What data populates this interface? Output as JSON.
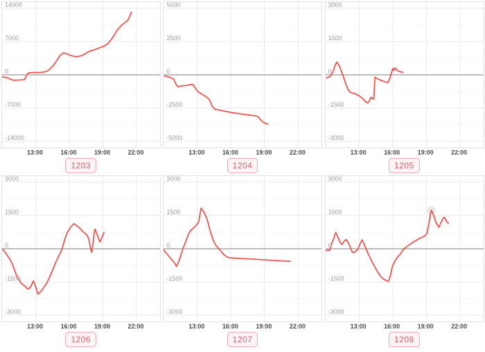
{
  "style": {
    "line_color": "#ef5350",
    "zero_line_color": "#a6a6a6",
    "grid_major_color": "#eaeaea",
    "grid_minor_color": "#f5f5f5",
    "panel_border_color": "#e2e2e2",
    "ytick_color": "#9b9b9b",
    "xtick_color": "#4a4a4a",
    "badge_text_color": "#e65a6b",
    "badge_border_color": "#f5a3b7",
    "badge_bg_color": "#fdf4f6",
    "highlight_color": "rgba(130,130,130,0.18)"
  },
  "axis": {
    "x_start_hour": 10,
    "x_end_hour": 24.1,
    "xticks_hours": [
      13,
      16,
      19,
      22
    ]
  },
  "chart_data": [
    {
      "id": "1203",
      "type": "line",
      "ymax": 14000,
      "ylim": [
        -14000,
        14000
      ],
      "yticks": [
        "14000",
        "7000",
        "0",
        "-7000",
        "-14000"
      ],
      "xticks": [
        "13:00",
        "16:00",
        "19:00",
        "22:00"
      ],
      "highlight": null,
      "points": [
        [
          10.0,
          -430
        ],
        [
          10.5,
          -650
        ],
        [
          11.0,
          -1150
        ],
        [
          11.6,
          -1080
        ],
        [
          12.0,
          -1010
        ],
        [
          12.15,
          -300
        ],
        [
          12.3,
          300
        ],
        [
          12.5,
          450
        ],
        [
          12.8,
          480
        ],
        [
          13.3,
          500
        ],
        [
          13.7,
          580
        ],
        [
          14.0,
          750
        ],
        [
          14.25,
          1200
        ],
        [
          14.55,
          1900
        ],
        [
          14.85,
          2900
        ],
        [
          15.15,
          4000
        ],
        [
          15.45,
          4600
        ],
        [
          15.75,
          4450
        ],
        [
          16.1,
          4100
        ],
        [
          16.4,
          3900
        ],
        [
          16.7,
          3820
        ],
        [
          17.0,
          3970
        ],
        [
          17.3,
          4260
        ],
        [
          17.6,
          4700
        ],
        [
          17.9,
          5050
        ],
        [
          18.2,
          5270
        ],
        [
          18.5,
          5500
        ],
        [
          18.8,
          5800
        ],
        [
          19.05,
          6000
        ],
        [
          19.25,
          6250
        ],
        [
          19.5,
          6700
        ],
        [
          19.8,
          7600
        ],
        [
          20.05,
          8500
        ],
        [
          20.3,
          9500
        ],
        [
          20.65,
          10400
        ],
        [
          20.95,
          11000
        ],
        [
          21.2,
          11400
        ],
        [
          21.35,
          12100
        ],
        [
          21.55,
          13200
        ]
      ]
    },
    {
      "id": "1204",
      "type": "line",
      "ymax": 5000,
      "ylim": [
        -5000,
        5000
      ],
      "yticks": [
        "5000",
        "2500",
        "0",
        "-2500",
        "-5000"
      ],
      "xticks": [
        "13:00",
        "16:00",
        "19:00",
        "22:00"
      ],
      "highlight": null,
      "points": [
        [
          10.1,
          -100
        ],
        [
          10.5,
          -170
        ],
        [
          10.9,
          -320
        ],
        [
          11.05,
          -600
        ],
        [
          11.2,
          -830
        ],
        [
          11.3,
          -890
        ],
        [
          11.5,
          -850
        ],
        [
          12.0,
          -800
        ],
        [
          12.6,
          -710
        ],
        [
          12.85,
          -1000
        ],
        [
          13.0,
          -1210
        ],
        [
          13.2,
          -1350
        ],
        [
          13.4,
          -1440
        ],
        [
          13.6,
          -1530
        ],
        [
          13.8,
          -1650
        ],
        [
          14.0,
          -1780
        ],
        [
          14.1,
          -1880
        ],
        [
          14.3,
          -2270
        ],
        [
          14.45,
          -2480
        ],
        [
          14.6,
          -2590
        ],
        [
          15.3,
          -2710
        ],
        [
          16.1,
          -2840
        ],
        [
          16.9,
          -2940
        ],
        [
          17.7,
          -3030
        ],
        [
          18.3,
          -3100
        ],
        [
          18.5,
          -3210
        ],
        [
          18.7,
          -3420
        ],
        [
          18.9,
          -3550
        ],
        [
          19.1,
          -3650
        ],
        [
          19.3,
          -3700
        ]
      ]
    },
    {
      "id": "1205",
      "type": "line",
      "ymax": 3000,
      "ylim": [
        -3000,
        3000
      ],
      "yticks": [
        "3000",
        "1500",
        "0",
        "-1500",
        "-3000"
      ],
      "xticks": [
        "13:00",
        "16:00",
        "19:00",
        "22:00"
      ],
      "highlight": null,
      "points": [
        [
          10.1,
          -140
        ],
        [
          10.3,
          -100
        ],
        [
          10.5,
          -20
        ],
        [
          10.7,
          190
        ],
        [
          10.85,
          430
        ],
        [
          11.0,
          580
        ],
        [
          11.2,
          420
        ],
        [
          11.4,
          170
        ],
        [
          11.6,
          -110
        ],
        [
          11.8,
          -420
        ],
        [
          12.0,
          -650
        ],
        [
          12.2,
          -790
        ],
        [
          12.45,
          -830
        ],
        [
          12.7,
          -870
        ],
        [
          13.0,
          -950
        ],
        [
          13.3,
          -1070
        ],
        [
          13.6,
          -1230
        ],
        [
          13.75,
          -1270
        ],
        [
          13.9,
          -1170
        ],
        [
          14.05,
          -1010
        ],
        [
          14.2,
          -1070
        ],
        [
          14.3,
          -1100
        ],
        [
          14.4,
          -110
        ],
        [
          14.7,
          -200
        ],
        [
          15.0,
          -260
        ],
        [
          15.3,
          -320
        ],
        [
          15.55,
          -350
        ],
        [
          15.7,
          -200
        ],
        [
          15.85,
          40
        ],
        [
          16.0,
          290
        ],
        [
          16.1,
          200
        ],
        [
          16.2,
          310
        ],
        [
          16.4,
          190
        ],
        [
          16.6,
          150
        ],
        [
          16.9,
          110
        ]
      ]
    },
    {
      "id": "1206",
      "type": "line",
      "ymax": 3000,
      "ylim": [
        -3000,
        3000
      ],
      "yticks": [
        "3000",
        "1500",
        "0",
        "-1500",
        "-3000"
      ],
      "xticks": [
        "13:00",
        "16:00",
        "19:00",
        "22:00"
      ],
      "highlight": null,
      "points": [
        [
          10.0,
          0
        ],
        [
          10.3,
          -180
        ],
        [
          10.55,
          -370
        ],
        [
          10.75,
          -510
        ],
        [
          11.0,
          -800
        ],
        [
          11.2,
          -1090
        ],
        [
          11.4,
          -1320
        ],
        [
          11.7,
          -1550
        ],
        [
          12.1,
          -1720
        ],
        [
          12.3,
          -1820
        ],
        [
          12.5,
          -1760
        ],
        [
          12.8,
          -1450
        ],
        [
          13.0,
          -1720
        ],
        [
          13.2,
          -2050
        ],
        [
          13.4,
          -1950
        ],
        [
          13.6,
          -1840
        ],
        [
          14.0,
          -1530
        ],
        [
          14.3,
          -1220
        ],
        [
          14.6,
          -850
        ],
        [
          14.9,
          -490
        ],
        [
          15.1,
          -280
        ],
        [
          15.35,
          -20
        ],
        [
          15.55,
          340
        ],
        [
          15.75,
          660
        ],
        [
          15.95,
          840
        ],
        [
          16.15,
          990
        ],
        [
          16.4,
          1130
        ],
        [
          16.65,
          1050
        ],
        [
          16.95,
          920
        ],
        [
          17.25,
          760
        ],
        [
          17.55,
          630
        ],
        [
          17.75,
          430
        ],
        [
          17.9,
          0
        ],
        [
          18.0,
          -160
        ],
        [
          18.1,
          190
        ],
        [
          18.25,
          810
        ],
        [
          18.3,
          880
        ],
        [
          18.5,
          630
        ],
        [
          18.65,
          400
        ],
        [
          18.75,
          310
        ],
        [
          18.95,
          550
        ],
        [
          19.1,
          730
        ]
      ]
    },
    {
      "id": "1207",
      "type": "line",
      "ymax": 3000,
      "ylim": [
        -3000,
        3000
      ],
      "yticks": [
        "3000",
        "1500",
        "0",
        "-1500",
        "-3000"
      ],
      "xticks": [
        "13:00",
        "16:00",
        "19:00",
        "22:00"
      ],
      "highlight": null,
      "points": [
        [
          10.0,
          -40
        ],
        [
          10.3,
          -230
        ],
        [
          10.65,
          -440
        ],
        [
          11.0,
          -650
        ],
        [
          11.15,
          -800
        ],
        [
          11.35,
          -590
        ],
        [
          11.55,
          -280
        ],
        [
          11.75,
          30
        ],
        [
          12.0,
          340
        ],
        [
          12.2,
          630
        ],
        [
          12.4,
          810
        ],
        [
          12.6,
          900
        ],
        [
          12.8,
          1000
        ],
        [
          13.0,
          1100
        ],
        [
          13.15,
          1230
        ],
        [
          13.3,
          1700
        ],
        [
          13.35,
          1830
        ],
        [
          13.6,
          1660
        ],
        [
          13.8,
          1440
        ],
        [
          13.9,
          1310
        ],
        [
          14.1,
          920
        ],
        [
          14.3,
          580
        ],
        [
          14.5,
          310
        ],
        [
          14.7,
          130
        ],
        [
          14.95,
          0
        ],
        [
          15.15,
          -130
        ],
        [
          15.35,
          -250
        ],
        [
          15.55,
          -330
        ],
        [
          15.75,
          -390
        ],
        [
          15.95,
          -410
        ],
        [
          17.0,
          -440
        ],
        [
          18.0,
          -470
        ],
        [
          19.0,
          -500
        ],
        [
          20.0,
          -530
        ],
        [
          21.0,
          -560
        ],
        [
          21.3,
          -570
        ]
      ]
    },
    {
      "id": "1208",
      "type": "line",
      "ymax": 3000,
      "ylim": [
        -3000,
        3000
      ],
      "yticks": [
        "3000",
        "1500",
        "0",
        "-1500",
        "-3000"
      ],
      "xticks": [
        "13:00",
        "16:00",
        "19:00",
        "22:00"
      ],
      "highlight": [
        19.45,
        1730
      ],
      "points": [
        [
          10.0,
          -70
        ],
        [
          10.35,
          -70
        ],
        [
          10.55,
          240
        ],
        [
          10.75,
          500
        ],
        [
          10.9,
          740
        ],
        [
          11.15,
          450
        ],
        [
          11.35,
          240
        ],
        [
          11.45,
          190
        ],
        [
          11.65,
          340
        ],
        [
          11.85,
          420
        ],
        [
          12.05,
          240
        ],
        [
          12.25,
          0
        ],
        [
          12.35,
          -125
        ],
        [
          12.45,
          -180
        ],
        [
          12.65,
          -125
        ],
        [
          12.85,
          -40
        ],
        [
          13.05,
          190
        ],
        [
          13.25,
          400
        ],
        [
          13.4,
          240
        ],
        [
          13.6,
          0
        ],
        [
          13.8,
          -230
        ],
        [
          14.0,
          -440
        ],
        [
          14.2,
          -650
        ],
        [
          14.4,
          -830
        ],
        [
          14.6,
          -1010
        ],
        [
          14.8,
          -1170
        ],
        [
          15.0,
          -1290
        ],
        [
          15.2,
          -1380
        ],
        [
          15.4,
          -1430
        ],
        [
          15.6,
          -1480
        ],
        [
          15.8,
          -1170
        ],
        [
          15.9,
          -910
        ],
        [
          16.0,
          -750
        ],
        [
          16.1,
          -630
        ],
        [
          16.2,
          -540
        ],
        [
          16.4,
          -380
        ],
        [
          16.6,
          -280
        ],
        [
          16.8,
          -130
        ],
        [
          17.0,
          0
        ],
        [
          17.25,
          100
        ],
        [
          17.55,
          210
        ],
        [
          17.85,
          310
        ],
        [
          18.15,
          400
        ],
        [
          18.45,
          480
        ],
        [
          18.75,
          550
        ],
        [
          18.95,
          630
        ],
        [
          19.05,
          710
        ],
        [
          19.25,
          1230
        ],
        [
          19.35,
          1600
        ],
        [
          19.45,
          1730
        ],
        [
          19.65,
          1490
        ],
        [
          19.85,
          1180
        ],
        [
          20.1,
          970
        ],
        [
          20.3,
          1180
        ],
        [
          20.5,
          1390
        ],
        [
          20.6,
          1420
        ],
        [
          20.8,
          1230
        ],
        [
          20.95,
          1150
        ]
      ]
    }
  ]
}
